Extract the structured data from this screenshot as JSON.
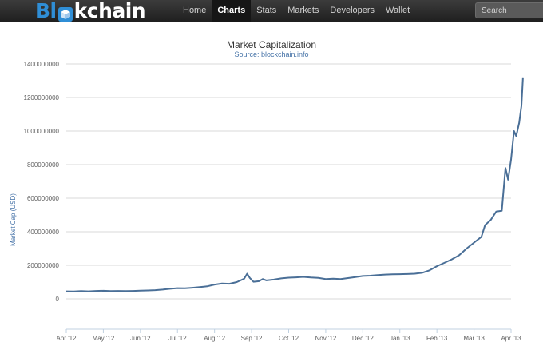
{
  "brand": {
    "logo_left": "Bl",
    "logo_right": "kchain",
    "logo_cube_icon": "cube-icon"
  },
  "nav": {
    "items": [
      {
        "label": "Home",
        "active": false
      },
      {
        "label": "Charts",
        "active": true
      },
      {
        "label": "Stats",
        "active": false
      },
      {
        "label": "Markets",
        "active": false
      },
      {
        "label": "Developers",
        "active": false
      },
      {
        "label": "Wallet",
        "active": false
      }
    ],
    "search_placeholder": "Search"
  },
  "colors": {
    "navbar": "#2a2a2a",
    "brand_blue": "#2f8ed6",
    "line": "#4a6f97",
    "title": "#333333",
    "subtitle": "#4572a7"
  },
  "chart_data": {
    "type": "line",
    "title": "Market Capitalization",
    "subtitle": "Source: blockchain.info",
    "ylabel": "Market Cap (USD)",
    "xlabel": "",
    "ylim": [
      0,
      1400000000
    ],
    "y_ticks": [
      "0",
      "200000000",
      "400000000",
      "600000000",
      "800000000",
      "1000000000",
      "1200000000",
      "1400000000"
    ],
    "x_ticks": [
      "Apr '12",
      "May '12",
      "Jun '12",
      "Jul '12",
      "Aug '12",
      "Sep '12",
      "Oct '12",
      "Nov '12",
      "Dec '12",
      "Jan '13",
      "Feb '13",
      "Mar '13",
      "Apr '13"
    ],
    "grid": true,
    "legend": "none",
    "series": [
      {
        "values": [
          [
            0,
            45000000
          ],
          [
            0.2,
            44000000
          ],
          [
            0.4,
            46000000
          ],
          [
            0.6,
            45000000
          ],
          [
            0.8,
            47000000
          ],
          [
            1.0,
            48000000
          ],
          [
            1.2,
            46000000
          ],
          [
            1.4,
            47000000
          ],
          [
            1.6,
            46000000
          ],
          [
            1.8,
            47000000
          ],
          [
            2.0,
            49000000
          ],
          [
            2.2,
            50000000
          ],
          [
            2.4,
            52000000
          ],
          [
            2.6,
            55000000
          ],
          [
            2.8,
            60000000
          ],
          [
            3.0,
            64000000
          ],
          [
            3.2,
            63000000
          ],
          [
            3.4,
            66000000
          ],
          [
            3.6,
            70000000
          ],
          [
            3.8,
            75000000
          ],
          [
            4.0,
            85000000
          ],
          [
            4.2,
            92000000
          ],
          [
            4.4,
            90000000
          ],
          [
            4.6,
            100000000
          ],
          [
            4.8,
            120000000
          ],
          [
            4.88,
            150000000
          ],
          [
            4.95,
            125000000
          ],
          [
            5.05,
            102000000
          ],
          [
            5.2,
            105000000
          ],
          [
            5.3,
            118000000
          ],
          [
            5.4,
            110000000
          ],
          [
            5.6,
            115000000
          ],
          [
            5.8,
            122000000
          ],
          [
            6.0,
            126000000
          ],
          [
            6.2,
            128000000
          ],
          [
            6.4,
            131000000
          ],
          [
            6.6,
            127000000
          ],
          [
            6.8,
            125000000
          ],
          [
            7.0,
            118000000
          ],
          [
            7.2,
            120000000
          ],
          [
            7.4,
            118000000
          ],
          [
            7.6,
            124000000
          ],
          [
            7.8,
            130000000
          ],
          [
            8.0,
            136000000
          ],
          [
            8.2,
            138000000
          ],
          [
            8.4,
            142000000
          ],
          [
            8.6,
            145000000
          ],
          [
            8.8,
            146000000
          ],
          [
            9.0,
            147000000
          ],
          [
            9.2,
            148000000
          ],
          [
            9.4,
            150000000
          ],
          [
            9.6,
            155000000
          ],
          [
            9.8,
            170000000
          ],
          [
            10.0,
            195000000
          ],
          [
            10.2,
            215000000
          ],
          [
            10.4,
            235000000
          ],
          [
            10.6,
            260000000
          ],
          [
            10.8,
            300000000
          ],
          [
            11.0,
            335000000
          ],
          [
            11.2,
            370000000
          ],
          [
            11.3,
            440000000
          ],
          [
            11.45,
            470000000
          ],
          [
            11.6,
            520000000
          ],
          [
            11.75,
            525000000
          ],
          [
            11.85,
            780000000
          ],
          [
            11.92,
            710000000
          ],
          [
            12.0,
            830000000
          ],
          [
            12.08,
            1000000000
          ],
          [
            12.14,
            970000000
          ],
          [
            12.22,
            1050000000
          ],
          [
            12.28,
            1150000000
          ],
          [
            12.32,
            1320000000
          ]
        ]
      }
    ]
  }
}
